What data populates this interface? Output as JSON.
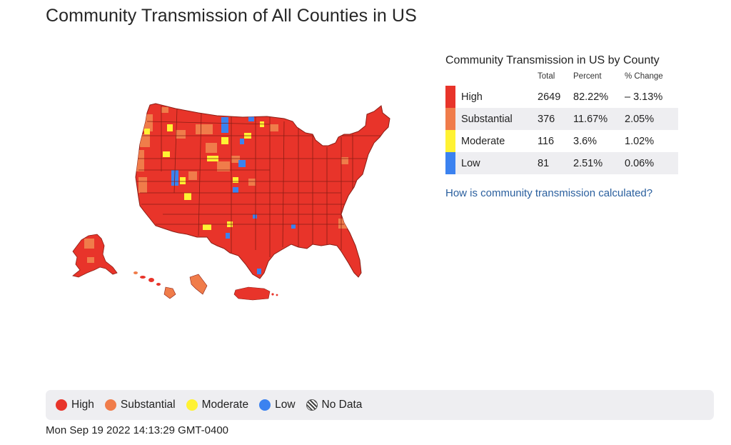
{
  "page": {
    "title": "Community Transmission of All Counties in US"
  },
  "map": {
    "regions": [
      "Contiguous US",
      "Alaska",
      "Hawaii",
      "Guam",
      "Puerto Rico"
    ],
    "colors": {
      "high": "#e8342a",
      "substantial": "#f07c4a",
      "moderate": "#fff233",
      "low": "#3b82f0",
      "border": "#8a1d14"
    }
  },
  "table": {
    "title": "Community Transmission in US by County",
    "headers": {
      "total": "Total",
      "percent": "Percent",
      "change": "% Change"
    },
    "rows": [
      {
        "level": "High",
        "total": "2649",
        "percent": "82.22%",
        "change": "– 3.13%",
        "color": "#e8342a"
      },
      {
        "level": "Substantial",
        "total": "376",
        "percent": "11.67%",
        "change": "2.05%",
        "color": "#f07c4a"
      },
      {
        "level": "Moderate",
        "total": "116",
        "percent": "3.6%",
        "change": "1.02%",
        "color": "#fff233"
      },
      {
        "level": "Low",
        "total": "81",
        "percent": "2.51%",
        "change": "0.06%",
        "color": "#3b82f0"
      }
    ]
  },
  "link": {
    "text": "How is community transmission calculated?"
  },
  "legend": {
    "items": [
      {
        "label": "High",
        "color": "#e8342a"
      },
      {
        "label": "Substantial",
        "color": "#f07c4a"
      },
      {
        "label": "Moderate",
        "color": "#fff233"
      },
      {
        "label": "Low",
        "color": "#3b82f0"
      },
      {
        "label": "No Data",
        "color": "hatched"
      }
    ]
  },
  "timestamp": "Mon Sep 19 2022 14:13:29 GMT-0400"
}
